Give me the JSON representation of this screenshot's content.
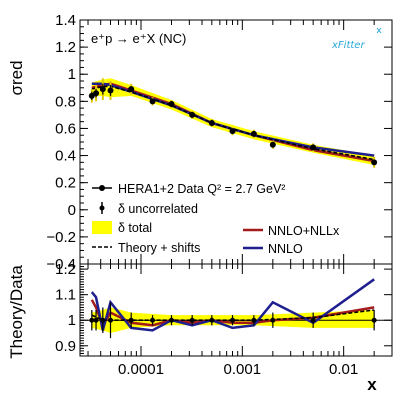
{
  "chart_data": [
    {
      "panel": "top",
      "type": "scatter",
      "title": "e⁺p → e⁺X (NC)",
      "ylabel": "σred",
      "xlabel": "",
      "xscale": "log",
      "xlim": [
        2.5e-05,
        0.03
      ],
      "ylim": [
        -0.4,
        1.4
      ],
      "y_ticks": [
        "−0.4",
        "−0.2",
        "0",
        "0.2",
        "0.4",
        "0.6",
        "0.8",
        "1",
        "1.2",
        "1.4"
      ],
      "x_ticks": [
        "0.0001",
        "0.001",
        "0.01"
      ],
      "logo": "xFitter",
      "legend": {
        "left": [
          {
            "key": "data",
            "label": "HERA1+2 Data Q² = 2.7 GeV²"
          },
          {
            "key": "uncorr",
            "label": "δ uncorrelated"
          },
          {
            "key": "total",
            "label": "δ total"
          },
          {
            "key": "shift",
            "label": "Theory + shifts"
          }
        ],
        "right": [
          {
            "key": "nnlo_nllx",
            "label": "NNLO+NLLx",
            "color": "#a31b1b"
          },
          {
            "key": "nnlo",
            "label": "NNLO",
            "color": "#1f1f8f"
          }
        ]
      },
      "series": [
        {
          "name": "HERA1+2 Data Q² = 2.7 GeV²",
          "x": [
            3.27e-05,
            3.6e-05,
            4.2e-05,
            5e-05,
            8e-05,
            0.00013,
            0.0002,
            0.00032,
            0.0005,
            0.0008,
            0.0013,
            0.002,
            0.005,
            0.02
          ],
          "y": [
            0.84,
            0.86,
            0.89,
            0.88,
            0.89,
            0.8,
            0.78,
            0.7,
            0.64,
            0.58,
            0.56,
            0.48,
            0.46,
            0.35
          ],
          "yerr_uncorrelated": [
            0.03,
            0.03,
            0.04,
            0.04,
            0.02,
            0.02,
            0.02,
            0.02,
            0.02,
            0.02,
            0.02,
            0.02,
            0.02,
            0.02
          ],
          "yerr_total": [
            0.05,
            0.06,
            0.08,
            0.07,
            0.04,
            0.03,
            0.03,
            0.03,
            0.03,
            0.03,
            0.03,
            0.03,
            0.03,
            0.04
          ]
        },
        {
          "name": "NNLO+NLLx",
          "x": [
            3.27e-05,
            4.2e-05,
            5e-05,
            8e-05,
            0.0002,
            0.0005,
            0.0013,
            0.005,
            0.02
          ],
          "y": [
            0.9,
            0.92,
            0.93,
            0.88,
            0.78,
            0.64,
            0.55,
            0.44,
            0.36
          ]
        },
        {
          "name": "NNLO",
          "x": [
            3.27e-05,
            4.2e-05,
            5e-05,
            8e-05,
            0.0002,
            0.0005,
            0.0013,
            0.005,
            0.02
          ],
          "y": [
            0.93,
            0.93,
            0.92,
            0.87,
            0.77,
            0.64,
            0.55,
            0.46,
            0.4
          ]
        },
        {
          "name": "Theory + shifts",
          "x": [
            3.27e-05,
            4.2e-05,
            5e-05,
            8e-05,
            0.0002,
            0.0005,
            0.0013,
            0.005,
            0.02
          ],
          "y": [
            0.89,
            0.91,
            0.91,
            0.87,
            0.77,
            0.64,
            0.55,
            0.45,
            0.37
          ]
        }
      ],
      "band_total": {
        "x": [
          3.27e-05,
          4.2e-05,
          5e-05,
          8e-05,
          0.0002,
          0.0005,
          0.0013,
          0.005,
          0.02
        ],
        "low": [
          0.84,
          0.84,
          0.83,
          0.84,
          0.74,
          0.61,
          0.52,
          0.42,
          0.33
        ],
        "high": [
          0.94,
          0.96,
          0.97,
          0.92,
          0.81,
          0.67,
          0.58,
          0.48,
          0.4
        ]
      }
    },
    {
      "panel": "bottom",
      "type": "line",
      "ylabel": "Theory/Data",
      "xlabel": "x",
      "xscale": "log",
      "xlim": [
        2.5e-05,
        0.03
      ],
      "ylim": [
        0.86,
        1.22
      ],
      "y_ticks": [
        "0.9",
        "1",
        "1.1",
        "1.2"
      ],
      "x_ticks": [
        "0.0001",
        "0.001",
        "0.01"
      ],
      "points": {
        "x": [
          3.27e-05,
          3.6e-05,
          4.2e-05,
          5e-05,
          8e-05,
          0.00013,
          0.0002,
          0.00032,
          0.0005,
          0.0008,
          0.0013,
          0.002,
          0.005,
          0.02
        ],
        "y": [
          1.0,
          1.0,
          1.0,
          1.0,
          1.0,
          1.0,
          1.0,
          1.0,
          1.0,
          1.0,
          1.0,
          1.0,
          1.0,
          1.0
        ],
        "yerr": [
          0.04,
          0.04,
          0.05,
          0.07,
          0.03,
          0.02,
          0.02,
          0.02,
          0.02,
          0.02,
          0.02,
          0.03,
          0.03,
          0.04
        ]
      },
      "band_total": {
        "x": [
          3.27e-05,
          4.2e-05,
          5e-05,
          8e-05,
          0.0002,
          0.0005,
          0.0013,
          0.005,
          0.02
        ],
        "low": [
          0.97,
          0.96,
          0.95,
          0.97,
          0.98,
          0.98,
          0.98,
          0.97,
          0.97
        ],
        "high": [
          1.03,
          1.04,
          1.05,
          1.03,
          1.02,
          1.02,
          1.02,
          1.03,
          1.04
        ]
      },
      "series": [
        {
          "name": "NNLO+NLLx",
          "x": [
            3.27e-05,
            3.6e-05,
            4.2e-05,
            5e-05,
            8e-05,
            0.00013,
            0.0002,
            0.00032,
            0.0005,
            0.0008,
            0.0013,
            0.002,
            0.005,
            0.02
          ],
          "y": [
            1.08,
            1.05,
            0.98,
            1.03,
            0.99,
            0.98,
            1.0,
            0.99,
            1.0,
            0.99,
            0.99,
            1.0,
            1.01,
            1.05
          ]
        },
        {
          "name": "NNLO",
          "x": [
            3.27e-05,
            3.6e-05,
            4.2e-05,
            5e-05,
            8e-05,
            0.00013,
            0.0002,
            0.00032,
            0.0005,
            0.0008,
            0.0013,
            0.002,
            0.005,
            0.02
          ],
          "y": [
            1.11,
            1.09,
            0.96,
            1.07,
            0.97,
            0.96,
            1.0,
            0.98,
            1.0,
            0.97,
            0.98,
            1.07,
            0.99,
            1.16
          ]
        },
        {
          "name": "Theory + shifts",
          "x": [
            3.27e-05,
            4.2e-05,
            5e-05,
            8e-05,
            0.0002,
            0.0005,
            0.0013,
            0.005,
            0.02
          ],
          "y": [
            1.02,
            1.0,
            1.0,
            1.0,
            1.0,
            1.0,
            1.0,
            1.01,
            1.04
          ]
        }
      ]
    }
  ],
  "colors": {
    "band": "#ffff00",
    "nnlo_nllx": "#a31b1b",
    "nnlo": "#1f1f8f",
    "data": "#000000"
  }
}
